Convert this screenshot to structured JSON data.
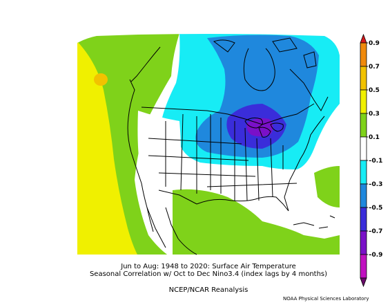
{
  "caption": {
    "line1": "Jun to Aug: 1948 to 2020: Surface Air Temperature",
    "line2": "Seasonal Correlation w/ Oct to Dec Nino3.4 (index lags by 4 months)",
    "line3": "NCEP/NCAR Reanalysis"
  },
  "credit": "NOAA Physical Sciences Laboratory",
  "colorbar": {
    "levels": [
      "0.9",
      "0.7",
      "0.5",
      "0.3",
      "0.1",
      "–0.1",
      "–0.3",
      "–0.5",
      "–0.7",
      "–0.9"
    ],
    "colors": [
      "#d7191c",
      "#f08a0c",
      "#f2c200",
      "#f0f000",
      "#7fd21a",
      "#ffffff",
      "#17ecf5",
      "#1f88dd",
      "#3a2dda",
      "#7a10c8",
      "#c010c0",
      "#6a0a6a"
    ]
  }
}
